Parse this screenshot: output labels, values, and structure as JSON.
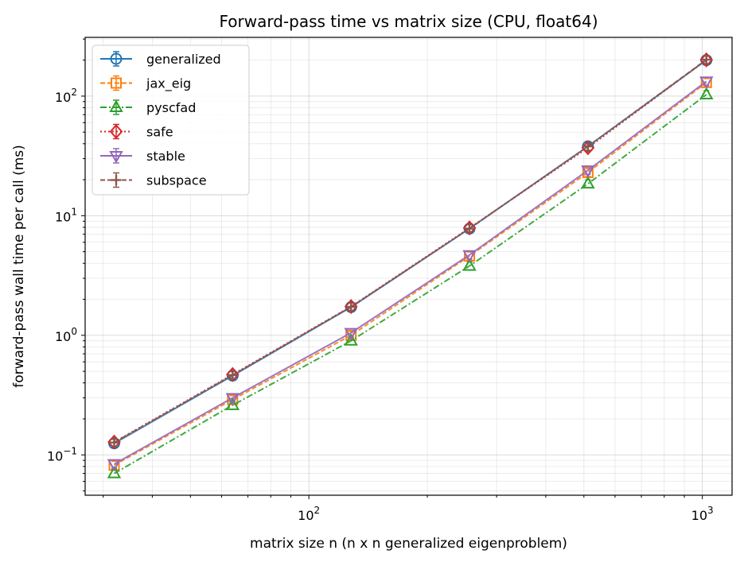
{
  "chart_data": {
    "type": "line",
    "title": "Forward-pass time vs matrix size (CPU, float64)",
    "xlabel": "matrix size n (n x n generalized eigenproblem)",
    "ylabel": "forward-pass wall time per call (ms)",
    "xscale": "log",
    "yscale": "log",
    "xlim": [
      27,
      1190
    ],
    "ylim": [
      0.046,
      310
    ],
    "x_ticks": [
      {
        "base": "10",
        "exp": "2",
        "value": 100
      },
      {
        "base": "10",
        "exp": "3",
        "value": 1000
      }
    ],
    "y_ticks": [
      {
        "base": "10",
        "exp": "−1",
        "value": 0.1
      },
      {
        "base": "10",
        "exp": "0",
        "value": 1
      },
      {
        "base": "10",
        "exp": "1",
        "value": 10
      },
      {
        "base": "10",
        "exp": "2",
        "value": 100
      }
    ],
    "grid": "on (major and minor)",
    "legend_position": "upper-left",
    "x": [
      32,
      64,
      128,
      256,
      512,
      1024
    ],
    "series": [
      {
        "name": "generalized",
        "color": "#1f77b4",
        "marker": "circle",
        "linestyle": "solid",
        "values": [
          0.125,
          0.46,
          1.72,
          7.8,
          38,
          200
        ]
      },
      {
        "name": "jax_eig",
        "color": "#ff7f0e",
        "marker": "square",
        "linestyle": "dashed",
        "values": [
          0.082,
          0.29,
          1.0,
          4.6,
          23,
          130
        ]
      },
      {
        "name": "pyscfad",
        "color": "#2ca02c",
        "marker": "triangle-up",
        "linestyle": "dashdot",
        "values": [
          0.07,
          0.26,
          0.9,
          3.8,
          18.5,
          103
        ]
      },
      {
        "name": "safe",
        "color": "#d62728",
        "marker": "diamond",
        "linestyle": "dotted",
        "values": [
          0.128,
          0.47,
          1.74,
          7.9,
          37,
          201
        ]
      },
      {
        "name": "stable",
        "color": "#9467bd",
        "marker": "triangle-down",
        "linestyle": "solid",
        "values": [
          0.084,
          0.3,
          1.05,
          4.7,
          24,
          133
        ]
      },
      {
        "name": "subspace",
        "color": "#8c564b",
        "marker": "plus",
        "linestyle": "dashed",
        "values": [
          0.127,
          0.465,
          1.73,
          7.8,
          38,
          202
        ]
      }
    ]
  }
}
